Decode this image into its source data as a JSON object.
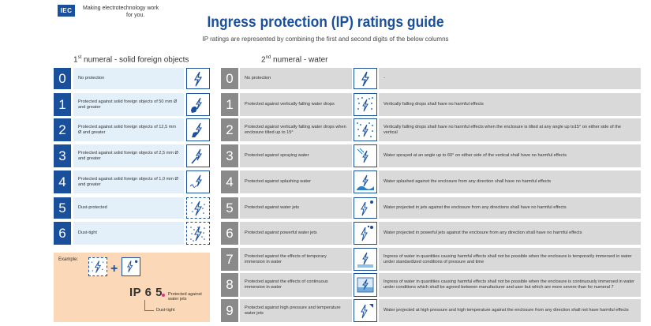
{
  "header": {
    "logo_text": "IEC",
    "tagline_line1": "Making  electrotechnology work",
    "tagline_line2": "for you.",
    "title": "Ingress protection (IP) ratings guide",
    "subtitle": "IP ratings are represented by combining the first and second digits of the below columns"
  },
  "columns": {
    "left_num": "1",
    "left_sup": "st",
    "left_rest": " numeral - solid foreign objects",
    "right_num": "2",
    "right_sup": "nd",
    "right_rest": " numeral - water"
  },
  "solid": [
    {
      "digit": "0",
      "text": "No protection",
      "icon": "lightning-icon"
    },
    {
      "digit": "1",
      "text": "Protected against solid foreign objects of 50 mm Ø and greater",
      "icon": "hand-icon"
    },
    {
      "digit": "2",
      "text": "Protected against solid foreign objects of 12,5 mm Ø and greater",
      "icon": "finger-icon"
    },
    {
      "digit": "3",
      "text": "Protected against solid foreign objects of 2,5 mm Ø and greater",
      "icon": "tool-icon"
    },
    {
      "digit": "4",
      "text": "Protected against solid foreign objects of 1,0 mm Ø and greater",
      "icon": "wire-icon"
    },
    {
      "digit": "5",
      "text": "Dust-protected",
      "icon": "dust-icon"
    },
    {
      "digit": "6",
      "text": "Dust-tight",
      "icon": "dust-tight-icon"
    }
  ],
  "water": [
    {
      "digit": "0",
      "text": "No protection",
      "detail": "-",
      "icon": "lightning-icon"
    },
    {
      "digit": "1",
      "text": "Protected against vertically falling water drops",
      "detail": "Vertically falling drops shall have no harmful effects",
      "icon": "drops-icon"
    },
    {
      "digit": "2",
      "text": "Protected against vertically falling water drops when enclosure tilted up to 15°",
      "detail": "Vertically falling drops shall have no harmful effects when the enclosure is tilted at any angle up to15° on either side of the vertical",
      "icon": "tilted-drops-icon"
    },
    {
      "digit": "3",
      "text": "Protected against spraying water",
      "detail": "Water sprayed at an angle up to 60° on either side of the vertical shall have no harmful effects",
      "icon": "spray-icon"
    },
    {
      "digit": "4",
      "text": "Protected against splashing water",
      "detail": "Water splashed against the enclosure from any direction shall have no harmful effects",
      "icon": "splash-icon"
    },
    {
      "digit": "5",
      "text": "Protected against water jets",
      "detail": "Water projected in jets against the enclosure from any directions shall have no harmful effects",
      "icon": "jet-icon"
    },
    {
      "digit": "6",
      "text": "Protected against powerful water jets",
      "detail": "Water projected in powerful jets against the enclosure from any direction shall have no harmful effects",
      "icon": "powerful-jet-icon"
    },
    {
      "digit": "7",
      "text": "Protected against the effects of temporary immersion in water",
      "detail": "Ingress of water in quantities causing harmful effects shall not be possible when the enclosure is temporarily immersed in water under standardized conditions of pressure and time",
      "icon": "immersion-icon"
    },
    {
      "digit": "8",
      "text": "Protected against the effects of continuous immersion in water",
      "detail": "Ingress of water in quantities causing harmful effects shall not be possible when the enclosure is continuously immersed in water under conditions which shall be agreed between manufacturer and user but which are more severe than for numeral 7",
      "icon": "continuous-immersion-icon"
    },
    {
      "digit": "9",
      "text": "Protected against high pressure and temperature water jets",
      "detail": "Water projected at high pressure and high temperature against the enclosure from any direction shall not have harmful effects",
      "icon": "high-pressure-icon"
    }
  ],
  "example": {
    "label": "Example:",
    "plus": "+",
    "ip_prefix": "IP ",
    "digit1": "6",
    "digit2": "5",
    "note_water": "Protected against water jets",
    "note_solid": "Dust-tight"
  },
  "colors": {
    "brand_blue": "#1a4f9c",
    "left_row_bg": "#e3f0fa",
    "right_num_bg": "#8a8a8a",
    "right_row_bg": "#d9d9d9",
    "example_bg": "#fbd9b8",
    "pointer": "#e0338e"
  }
}
